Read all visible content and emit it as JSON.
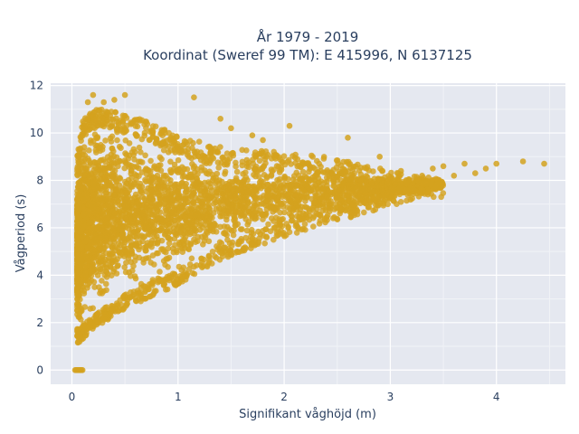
{
  "chart_data": {
    "type": "scatter",
    "title": "År 1979 - 2019",
    "subtitle": "Koordinat (Sweref 99 TM): E 415996, N 6137125",
    "xlabel": "Signifikant våghöjd (m)",
    "ylabel": "Vågperiod (s)",
    "xlim": [
      -0.2,
      4.65
    ],
    "ylim": [
      -0.6,
      12.1
    ],
    "x_ticks": [
      0,
      1,
      2,
      3,
      4
    ],
    "y_ticks": [
      0,
      2,
      4,
      6,
      8,
      10,
      12
    ],
    "x_tick_labels": [
      "0",
      "1",
      "2",
      "3",
      "4"
    ],
    "y_tick_labels": [
      "0",
      "2",
      "4",
      "6",
      "8",
      "10",
      "12"
    ],
    "grid": true,
    "legend": "none",
    "marker_color": "#D4A21E",
    "plot_background": "#E5E8F0",
    "series": [
      {
        "density_envelope": {
          "x": [
            0.05,
            0.1,
            0.2,
            0.3,
            0.5,
            0.7,
            1.0,
            1.3,
            1.6,
            2.0,
            2.4,
            2.8,
            3.2,
            3.5
          ],
          "y_low": [
            1.1,
            1.3,
            1.7,
            2.0,
            2.6,
            3.0,
            3.6,
            4.4,
            5.0,
            5.6,
            6.2,
            6.6,
            7.2,
            7.6
          ],
          "y_high": [
            9.0,
            10.5,
            11.0,
            11.0,
            10.8,
            10.5,
            9.9,
            9.5,
            9.3,
            9.2,
            9.0,
            8.6,
            8.3,
            8.0
          ]
        },
        "x": [
          0.03,
          0.04,
          0.05,
          0.06,
          0.07,
          0.08,
          0.09,
          0.1,
          0.15,
          0.2,
          0.3,
          0.4,
          0.5,
          1.15,
          1.4,
          1.5,
          1.7,
          1.8,
          2.05,
          2.6,
          2.9,
          3.1,
          3.3,
          3.4,
          3.5,
          3.6,
          3.7,
          3.8,
          3.9,
          4.0,
          4.25,
          4.45
        ],
        "y": [
          0.0,
          0.0,
          0.0,
          0.0,
          0.0,
          0.0,
          0.0,
          0.0,
          11.3,
          11.6,
          11.3,
          11.4,
          11.6,
          11.5,
          10.6,
          10.2,
          9.9,
          9.7,
          10.3,
          9.8,
          9.0,
          8.4,
          8.2,
          8.5,
          8.6,
          8.2,
          8.7,
          8.3,
          8.5,
          8.7,
          8.8,
          8.7
        ]
      }
    ]
  }
}
